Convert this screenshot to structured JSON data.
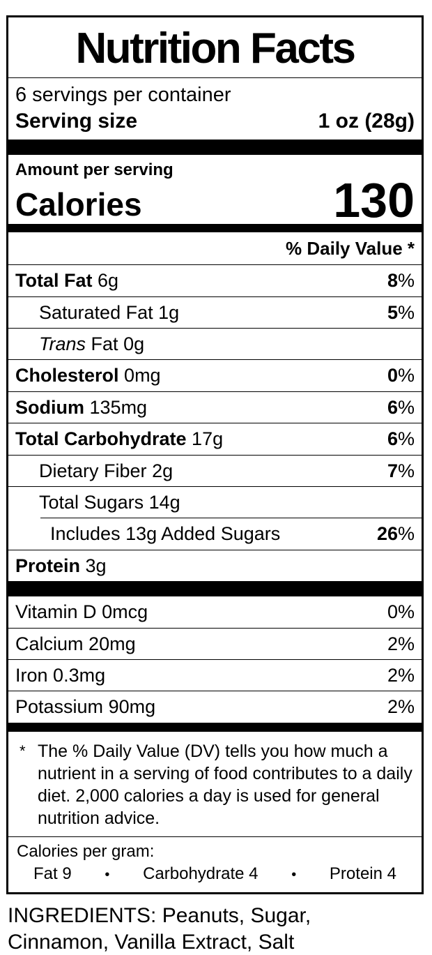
{
  "label": {
    "title": "Nutrition Facts",
    "servings_per_container": "6 servings per container",
    "serving_size_label": "Serving size",
    "serving_size_value": "1 oz (28g)",
    "amount_per_serving": "Amount per serving",
    "calories_label": "Calories",
    "calories_value": "130",
    "daily_value_header": "% Daily Value *",
    "percent_sign": "%",
    "nutrients": [
      {
        "name": "Total Fat",
        "amount": "6g",
        "dv": "8"
      },
      {
        "name": "Saturated Fat",
        "amount": "1g",
        "dv": "5"
      },
      {
        "name_italic": "Trans",
        "name": "Fat",
        "amount": "0g",
        "dv": ""
      },
      {
        "name": "Cholesterol",
        "amount": "0mg",
        "dv": "0"
      },
      {
        "name": "Sodium",
        "amount": "135mg",
        "dv": "6"
      },
      {
        "name": "Total Carbohydrate",
        "amount": "17g",
        "dv": "6"
      },
      {
        "name": "Dietary Fiber",
        "amount": "2g",
        "dv": "7"
      },
      {
        "name": "Total Sugars",
        "amount": "14g",
        "dv": ""
      },
      {
        "name": "Includes 13g Added Sugars",
        "amount": "",
        "dv": "26"
      },
      {
        "name": "Protein",
        "amount": "3g",
        "dv": ""
      }
    ],
    "vitamins": [
      {
        "name": "Vitamin D",
        "amount": "0mcg",
        "dv": "0"
      },
      {
        "name": "Calcium",
        "amount": "20mg",
        "dv": "2"
      },
      {
        "name": "Iron",
        "amount": "0.3mg",
        "dv": "2"
      },
      {
        "name": "Potassium",
        "amount": "90mg",
        "dv": "2"
      }
    ],
    "footnote_marker": "*",
    "footnote_text": "The % Daily Value (DV) tells you how much a nutrient in a serving of food contributes to a daily diet. 2,000 calories a day is used for general nutrition advice.",
    "calories_per_gram": {
      "heading": "Calories per gram:",
      "fat": "Fat 9",
      "carbohydrate": "Carbohydrate 4",
      "protein": "Protein 4",
      "bullet": "•"
    }
  },
  "ingredients_text": "INGREDIENTS: Peanuts, Sugar, Cinnamon, Vanilla Extract, Salt",
  "colors": {
    "text": "#000000",
    "background": "#ffffff",
    "border": "#000000"
  }
}
